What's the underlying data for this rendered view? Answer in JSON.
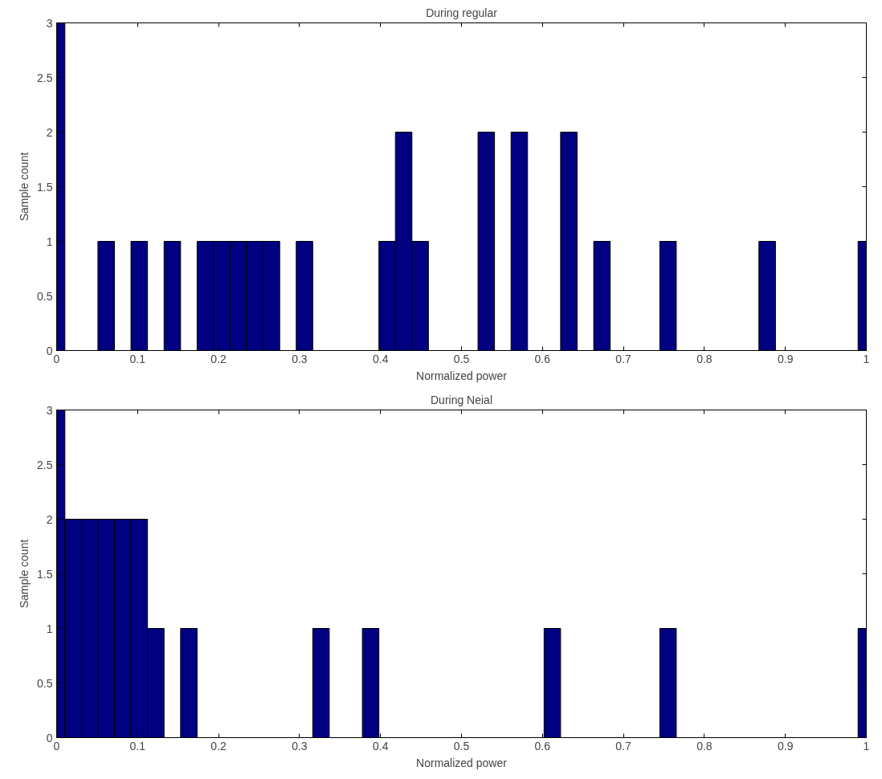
{
  "chart_data": [
    {
      "type": "histogram",
      "title": "During regular",
      "xlabel": "Normalized power",
      "ylabel": "Sample count",
      "color": "#000080",
      "bins": [
        -0.0102,
        0.0102,
        0.0306,
        0.051,
        0.0714,
        0.0918,
        0.1122,
        0.1327,
        0.1531,
        0.1735,
        0.1939,
        0.2143,
        0.2347,
        0.2551,
        0.2755,
        0.2959,
        0.3163,
        0.3367,
        0.3571,
        0.3776,
        0.398,
        0.4184,
        0.4388,
        0.4592,
        0.4796,
        0.5,
        0.5204,
        0.5408,
        0.5612,
        0.5816,
        0.602,
        0.6224,
        0.6429,
        0.6633,
        0.6837,
        0.7041,
        0.7245,
        0.7449,
        0.7653,
        0.7857,
        0.8061,
        0.8265,
        0.8469,
        0.8673,
        0.8878,
        0.9082,
        0.9286,
        0.949,
        0.9694,
        0.9898,
        1.0102
      ],
      "values": [
        3,
        0,
        0,
        1,
        0,
        1,
        0,
        1,
        0,
        1,
        1,
        1,
        1,
        1,
        0,
        1,
        0,
        0,
        0,
        0,
        1,
        2,
        1,
        0,
        0,
        0,
        2,
        0,
        2,
        0,
        0,
        2,
        0,
        1,
        0,
        0,
        0,
        1,
        0,
        0,
        0,
        0,
        0,
        1,
        0,
        0,
        0,
        0,
        0,
        1
      ],
      "xlim": [
        0,
        1
      ],
      "ylim": [
        0,
        3
      ],
      "xticks": [
        0,
        0.1,
        0.2,
        0.3,
        0.4,
        0.5,
        0.6,
        0.7,
        0.8,
        0.9,
        1
      ],
      "yticks": [
        0,
        0.5,
        1,
        1.5,
        2,
        2.5,
        3
      ]
    },
    {
      "type": "histogram",
      "title": "During Neial",
      "xlabel": "Normalized power",
      "ylabel": "Sample count",
      "color": "#000080",
      "bins": [
        -0.0102,
        0.0102,
        0.0306,
        0.051,
        0.0714,
        0.0918,
        0.1122,
        0.1327,
        0.1531,
        0.1735,
        0.1939,
        0.2143,
        0.2347,
        0.2551,
        0.2755,
        0.2959,
        0.3163,
        0.3367,
        0.3571,
        0.3776,
        0.398,
        0.4184,
        0.4388,
        0.4592,
        0.4796,
        0.5,
        0.5204,
        0.5408,
        0.5612,
        0.5816,
        0.602,
        0.6224,
        0.6429,
        0.6633,
        0.6837,
        0.7041,
        0.7245,
        0.7449,
        0.7653,
        0.7857,
        0.8061,
        0.8265,
        0.8469,
        0.8673,
        0.8878,
        0.9082,
        0.9286,
        0.949,
        0.9694,
        0.9898,
        1.0102
      ],
      "values": [
        3,
        2,
        2,
        2,
        2,
        2,
        1,
        0,
        1,
        0,
        0,
        0,
        0,
        0,
        0,
        0,
        1,
        0,
        0,
        1,
        0,
        0,
        0,
        0,
        0,
        0,
        0,
        0,
        0,
        0,
        1,
        0,
        0,
        0,
        0,
        0,
        0,
        1,
        0,
        0,
        0,
        0,
        0,
        0,
        0,
        0,
        0,
        0,
        0,
        1
      ],
      "xlim": [
        0,
        1
      ],
      "ylim": [
        0,
        3
      ],
      "xticks": [
        0,
        0.1,
        0.2,
        0.3,
        0.4,
        0.5,
        0.6,
        0.7,
        0.8,
        0.9,
        1
      ],
      "yticks": [
        0,
        0.5,
        1,
        1.5,
        2,
        2.5,
        3
      ]
    }
  ]
}
